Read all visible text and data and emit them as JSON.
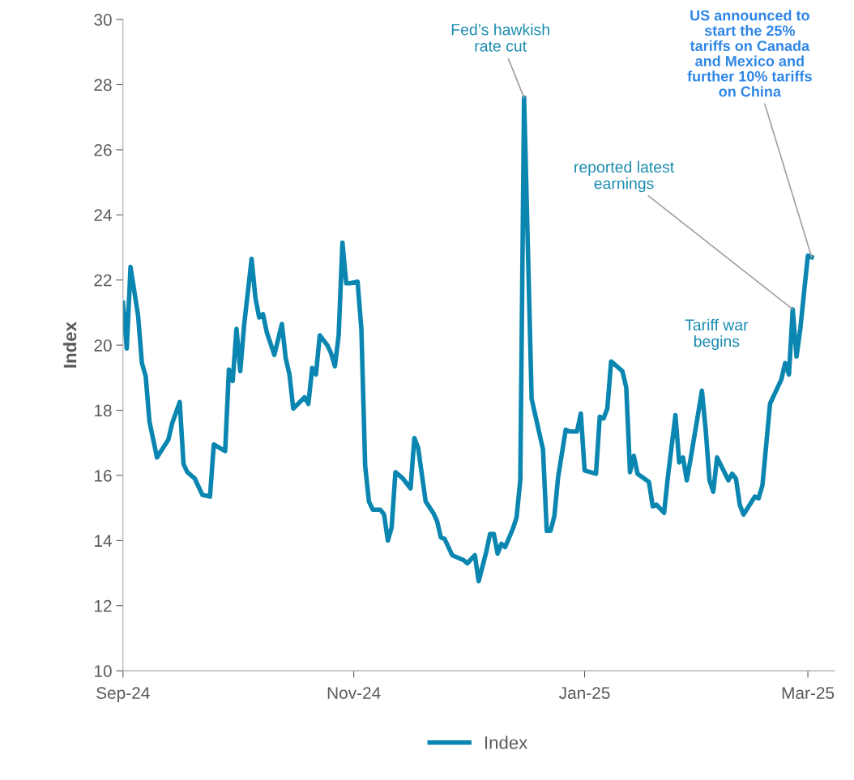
{
  "chart_data": {
    "type": "line",
    "ylabel": "Index",
    "x": [
      "2024-09-01",
      "2024-09-02",
      "2024-09-03",
      "2024-09-05",
      "2024-09-06",
      "2024-09-07",
      "2024-09-08",
      "2024-09-10",
      "2024-09-13",
      "2024-09-14",
      "2024-09-16",
      "2024-09-17",
      "2024-09-18",
      "2024-09-20",
      "2024-09-22",
      "2024-09-24",
      "2024-09-25",
      "2024-09-28",
      "2024-09-29",
      "2024-09-30",
      "2024-10-01",
      "2024-10-02",
      "2024-10-03",
      "2024-10-05",
      "2024-10-06",
      "2024-10-07",
      "2024-10-08",
      "2024-10-09",
      "2024-10-11",
      "2024-10-13",
      "2024-10-14",
      "2024-10-15",
      "2024-10-16",
      "2024-10-19",
      "2024-10-20",
      "2024-10-21",
      "2024-10-22",
      "2024-10-23",
      "2024-10-25",
      "2024-10-26",
      "2024-10-27",
      "2024-10-28",
      "2024-10-29",
      "2024-10-30",
      "2024-10-31",
      "2024-11-02",
      "2024-11-03",
      "2024-11-04",
      "2024-11-05",
      "2024-11-06",
      "2024-11-08",
      "2024-11-09",
      "2024-11-10",
      "2024-11-11",
      "2024-11-12",
      "2024-11-14",
      "2024-11-16",
      "2024-11-17",
      "2024-11-18",
      "2024-11-20",
      "2024-11-22",
      "2024-11-23",
      "2024-11-24",
      "2024-11-25",
      "2024-11-27",
      "2024-11-30",
      "2024-12-01",
      "2024-12-03",
      "2024-12-04",
      "2024-12-06",
      "2024-12-07",
      "2024-12-08",
      "2024-12-09",
      "2024-12-10",
      "2024-12-11",
      "2024-12-13",
      "2024-12-14",
      "2024-12-15",
      "2024-12-16",
      "2024-12-17",
      "2024-12-18",
      "2024-12-21",
      "2024-12-22",
      "2024-12-23",
      "2024-12-24",
      "2024-12-25",
      "2024-12-27",
      "2024-12-28",
      "2024-12-30",
      "2024-12-31",
      "2025-01-01",
      "2025-01-04",
      "2025-01-05",
      "2025-01-06",
      "2025-01-07",
      "2025-01-08",
      "2025-01-11",
      "2025-01-12",
      "2025-01-13",
      "2025-01-14",
      "2025-01-15",
      "2025-01-18",
      "2025-01-19",
      "2025-01-20",
      "2025-01-22",
      "2025-01-23",
      "2025-01-25",
      "2025-01-26",
      "2025-01-27",
      "2025-01-28",
      "2025-01-29",
      "2025-02-01",
      "2025-02-02",
      "2025-02-03",
      "2025-02-04",
      "2025-02-05",
      "2025-02-08",
      "2025-02-09",
      "2025-02-10",
      "2025-02-11",
      "2025-02-12",
      "2025-02-15",
      "2025-02-16",
      "2025-02-17",
      "2025-02-19",
      "2025-02-22",
      "2025-02-23",
      "2025-02-24",
      "2025-02-25",
      "2025-02-26",
      "2025-02-27",
      "2025-03-01",
      "2025-03-02"
    ],
    "series": [
      {
        "name": "Index",
        "color": "#0a86b0",
        "values": [
          21.3,
          19.9,
          22.4,
          20.9,
          19.45,
          19.05,
          17.65,
          16.55,
          17.1,
          17.6,
          18.25,
          16.35,
          16.1,
          15.9,
          15.4,
          15.35,
          16.95,
          16.75,
          19.25,
          18.9,
          20.5,
          19.2,
          20.6,
          22.65,
          21.45,
          20.85,
          20.95,
          20.4,
          19.7,
          20.65,
          19.6,
          19.1,
          18.05,
          18.4,
          18.2,
          19.3,
          19.1,
          20.3,
          20.0,
          19.75,
          19.35,
          20.3,
          23.15,
          21.9,
          21.9,
          21.95,
          20.5,
          16.3,
          15.2,
          14.95,
          14.95,
          14.8,
          14.0,
          14.4,
          16.1,
          15.9,
          15.6,
          17.15,
          16.85,
          15.2,
          14.85,
          14.6,
          14.1,
          14.05,
          13.55,
          13.4,
          13.3,
          13.55,
          12.75,
          13.65,
          14.2,
          14.2,
          13.6,
          13.9,
          13.8,
          14.35,
          14.7,
          15.85,
          27.6,
          23.0,
          18.35,
          16.8,
          14.3,
          14.3,
          14.75,
          15.95,
          17.4,
          17.35,
          17.35,
          17.9,
          16.15,
          16.05,
          17.8,
          17.75,
          18.05,
          19.5,
          19.2,
          18.7,
          16.1,
          16.6,
          16.05,
          15.8,
          15.05,
          15.1,
          14.85,
          15.95,
          17.85,
          16.4,
          16.55,
          15.85,
          16.5,
          18.6,
          17.4,
          15.85,
          15.5,
          16.55,
          15.85,
          16.05,
          15.9,
          15.1,
          14.8,
          15.35,
          15.3,
          15.7,
          18.2,
          18.95,
          19.45,
          19.1,
          21.1,
          19.65,
          20.5,
          22.75,
          22.7
        ]
      }
    ],
    "xlim": [
      "2024-09-01",
      "2025-03-08"
    ],
    "xticks": [
      {
        "value": "2024-09-01",
        "label": "Sep-24"
      },
      {
        "value": "2024-11-01",
        "label": "Nov-24"
      },
      {
        "value": "2025-01-01",
        "label": "Jan-25"
      },
      {
        "value": "2025-03-01",
        "label": "Mar-25"
      }
    ],
    "ylim": [
      10,
      30
    ],
    "yticks": [
      10,
      12,
      14,
      16,
      18,
      20,
      22,
      24,
      26,
      28,
      30
    ],
    "grid": false,
    "legend": "bottom",
    "marker": "none",
    "line_style": "solid",
    "annotations": [
      {
        "text": "Fed’s hawkish\nrate cut",
        "x": "2024-12-16",
        "y": 27.6
      },
      {
        "text": "Tariff war\nbegins",
        "x": "2025-02-01",
        "y": 18.6
      },
      {
        "text": "reported latest\nearnings",
        "x": "2025-02-25",
        "y": 21.1
      },
      {
        "text": "US announced to\nstart the 25%\ntariffs on Canada\nand Mexico and\nfurther 10% tariffs\non China",
        "x": "2025-03-02",
        "y": 22.7
      }
    ]
  }
}
